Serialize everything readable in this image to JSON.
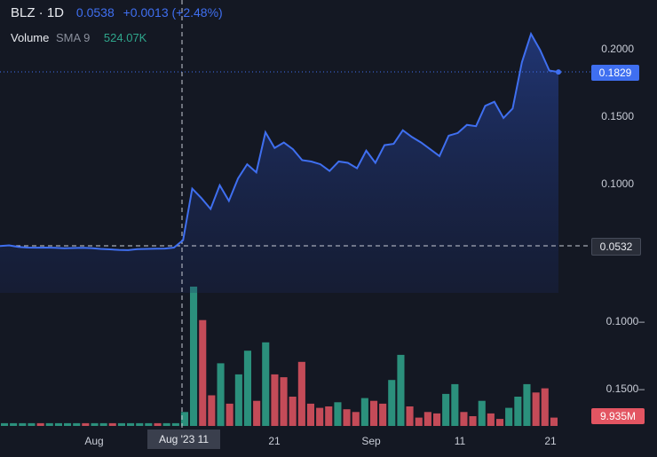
{
  "legend": {
    "symbol": "BLZ · 1D",
    "price": "0.0538",
    "change": "+0.0013 (+2.48%)",
    "volume_label": "Volume",
    "sma_label": "SMA 9",
    "volume_value": "524.07K"
  },
  "price_axis": {
    "ticks": [
      "0.2000",
      "0.1500",
      "0.1000"
    ],
    "current_label": "0.1829",
    "crosshair_label": "0.0532"
  },
  "volume_axis": {
    "ticks": [
      "0.1000–",
      "0.1500–"
    ],
    "current_label": "9.935M"
  },
  "time_axis": {
    "ticks": [
      "Aug",
      "21",
      "Sep",
      "11",
      "21"
    ],
    "crosshair_label": "Aug '23 11"
  },
  "colors": {
    "line": "#3f6ff0",
    "up": "#2fa68c",
    "down": "#e35562",
    "current_badge": "#3f6ff0",
    "volume_badge": "#e35562"
  },
  "chart_data": {
    "type": "area",
    "price_range": [
      0.0532,
      0.2
    ],
    "price_series": [
      0.0547,
      0.0552,
      0.0541,
      0.0536,
      0.0535,
      0.0536,
      0.0534,
      0.0531,
      0.0533,
      0.0534,
      0.0532,
      0.0526,
      0.0523,
      0.0519,
      0.0517,
      0.0524,
      0.0526,
      0.0528,
      0.0529,
      0.0536,
      0.059,
      0.097,
      0.09,
      0.082,
      0.0995,
      0.088,
      0.1045,
      0.115,
      0.109,
      0.1385,
      0.127,
      0.131,
      0.126,
      0.118,
      0.117,
      0.115,
      0.11,
      0.117,
      0.116,
      0.112,
      0.125,
      0.116,
      0.129,
      0.13,
      0.14,
      0.135,
      0.131,
      0.126,
      0.121,
      0.136,
      0.138,
      0.144,
      0.143,
      0.158,
      0.161,
      0.149,
      0.156,
      0.19,
      0.211,
      0.199,
      0.184,
      0.1829
    ],
    "volume_units": [
      "0.1000",
      "0.1500"
    ],
    "volume_bars": [
      {
        "h": 0.02,
        "up": true
      },
      {
        "h": 0.02,
        "up": true
      },
      {
        "h": 0.02,
        "up": true
      },
      {
        "h": 0.02,
        "up": true
      },
      {
        "h": 0.02,
        "up": false
      },
      {
        "h": 0.02,
        "up": true
      },
      {
        "h": 0.02,
        "up": true
      },
      {
        "h": 0.02,
        "up": true
      },
      {
        "h": 0.02,
        "up": true
      },
      {
        "h": 0.02,
        "up": false
      },
      {
        "h": 0.02,
        "up": true
      },
      {
        "h": 0.02,
        "up": true
      },
      {
        "h": 0.02,
        "up": false
      },
      {
        "h": 0.02,
        "up": true
      },
      {
        "h": 0.02,
        "up": true
      },
      {
        "h": 0.02,
        "up": true
      },
      {
        "h": 0.02,
        "up": true
      },
      {
        "h": 0.02,
        "up": false
      },
      {
        "h": 0.02,
        "up": true
      },
      {
        "h": 0.02,
        "up": true
      },
      {
        "h": 0.1,
        "up": true
      },
      {
        "h": 1.0,
        "up": true
      },
      {
        "h": 0.76,
        "up": false
      },
      {
        "h": 0.22,
        "up": false
      },
      {
        "h": 0.45,
        "up": true
      },
      {
        "h": 0.16,
        "up": false
      },
      {
        "h": 0.37,
        "up": true
      },
      {
        "h": 0.54,
        "up": true
      },
      {
        "h": 0.18,
        "up": false
      },
      {
        "h": 0.6,
        "up": true
      },
      {
        "h": 0.37,
        "up": false
      },
      {
        "h": 0.35,
        "up": false
      },
      {
        "h": 0.21,
        "up": false
      },
      {
        "h": 0.46,
        "up": false
      },
      {
        "h": 0.16,
        "up": false
      },
      {
        "h": 0.13,
        "up": false
      },
      {
        "h": 0.14,
        "up": false
      },
      {
        "h": 0.17,
        "up": true
      },
      {
        "h": 0.12,
        "up": false
      },
      {
        "h": 0.1,
        "up": false
      },
      {
        "h": 0.2,
        "up": true
      },
      {
        "h": 0.18,
        "up": false
      },
      {
        "h": 0.16,
        "up": false
      },
      {
        "h": 0.33,
        "up": true
      },
      {
        "h": 0.51,
        "up": true
      },
      {
        "h": 0.14,
        "up": false
      },
      {
        "h": 0.06,
        "up": false
      },
      {
        "h": 0.1,
        "up": false
      },
      {
        "h": 0.09,
        "up": false
      },
      {
        "h": 0.23,
        "up": true
      },
      {
        "h": 0.3,
        "up": true
      },
      {
        "h": 0.1,
        "up": false
      },
      {
        "h": 0.07,
        "up": false
      },
      {
        "h": 0.18,
        "up": true
      },
      {
        "h": 0.09,
        "up": false
      },
      {
        "h": 0.05,
        "up": false
      },
      {
        "h": 0.13,
        "up": true
      },
      {
        "h": 0.21,
        "up": true
      },
      {
        "h": 0.3,
        "up": true
      },
      {
        "h": 0.24,
        "up": false
      },
      {
        "h": 0.27,
        "up": false
      },
      {
        "h": 0.06,
        "up": false
      }
    ]
  }
}
